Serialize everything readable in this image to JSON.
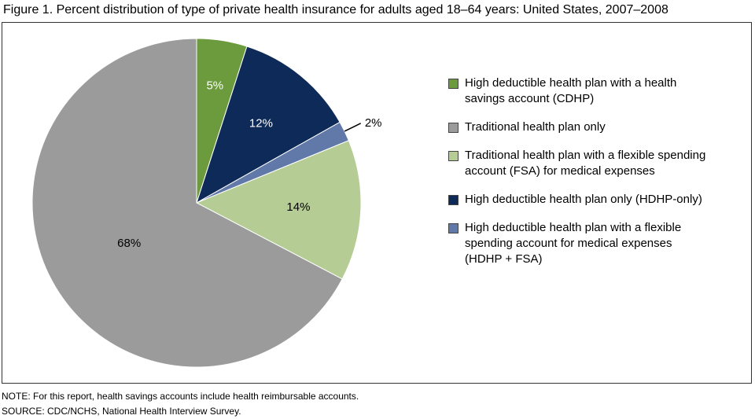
{
  "chart_data": {
    "type": "pie",
    "title": "Figure 1. Percent distribution of type of private health insurance for adults aged 18–64 years: United States, 2007–2008",
    "categories": [
      "High deductible health plan with a health savings account (CDHP)",
      "Traditional health plan only",
      "Traditional health plan with a flexible spending account (FSA) for medical expenses",
      "High deductible health plan only (HDHP-only)",
      "High deductible health plan with a flexible spending account for medical expenses (HDHP + FSA)"
    ],
    "values": [
      5,
      68,
      14,
      12,
      2
    ],
    "value_labels": [
      "5%",
      "68%",
      "14%",
      "12%",
      "2%"
    ],
    "colors": [
      "#6b9b3c",
      "#9b9b9b",
      "#b5cd95",
      "#0e2a58",
      "#6079a8"
    ],
    "note": "NOTE: For this report, health savings accounts include health reimbursable accounts.",
    "source": "SOURCE: CDC/NCHS, National Health Interview Survey."
  }
}
